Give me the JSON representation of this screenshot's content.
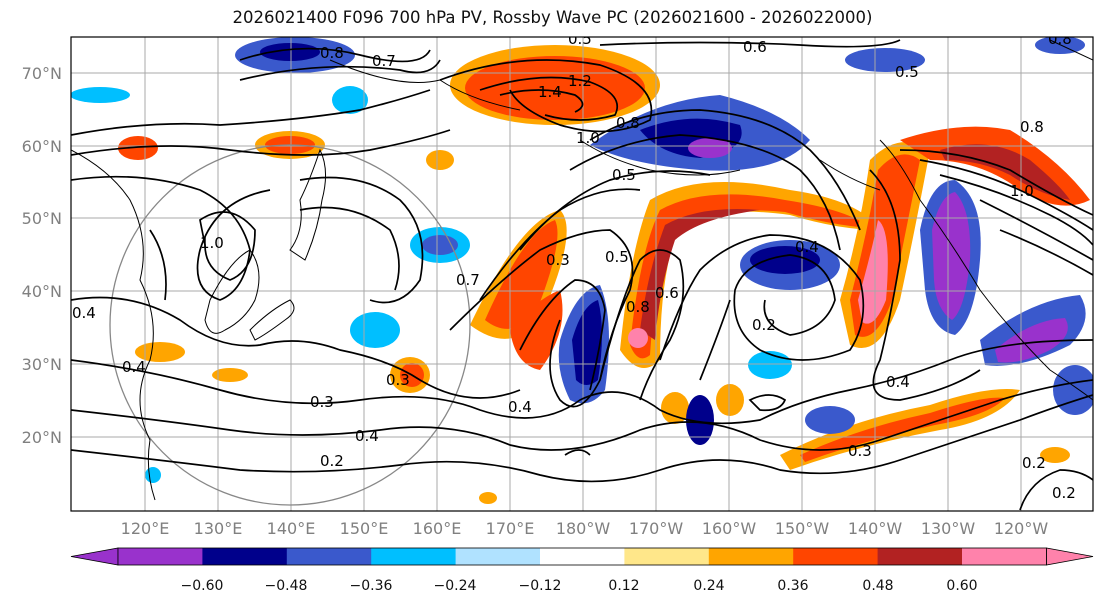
{
  "title": "2026021400 F096 700 hPa PV, Rossby Wave PC (2026021600 - 2026022000)",
  "map": {
    "lat_labels": [
      "70°N",
      "60°N",
      "50°N",
      "40°N",
      "30°N",
      "20°N"
    ],
    "lon_labels": [
      "120°E",
      "130°E",
      "140°E",
      "150°E",
      "160°E",
      "170°E",
      "180°W",
      "170°W",
      "160°W",
      "150°W",
      "140°W",
      "130°W",
      "120°W"
    ],
    "contour_labels": [
      "0.8",
      "0.7",
      "0.5",
      "1.2",
      "1.4",
      "0.6",
      "0.5",
      "0.8",
      "0.8",
      "1.0",
      "1.0",
      "0.8",
      "0.5",
      "0.4",
      "1.0",
      "0.4",
      "0.7",
      "0.3",
      "0.5",
      "0.8",
      "0.6",
      "0.2",
      "0.4",
      "0.3",
      "0.4",
      "0.3",
      "0.2",
      "0.4",
      "0.3",
      "0.4",
      "0.2",
      "0.2"
    ]
  },
  "colorbar": {
    "ticks": [
      "−0.60",
      "−0.48",
      "−0.36",
      "−0.24",
      "−0.12",
      "0.12",
      "0.24",
      "0.36",
      "0.48",
      "0.60"
    ],
    "colors": [
      "#9932cc",
      "#00008b",
      "#3a59cc",
      "#00bfff",
      "#b0e2ff",
      "#ffffff",
      "#ffe78a",
      "#ffa500",
      "#ff4500",
      "#b22222",
      "#ff82ab"
    ]
  }
}
